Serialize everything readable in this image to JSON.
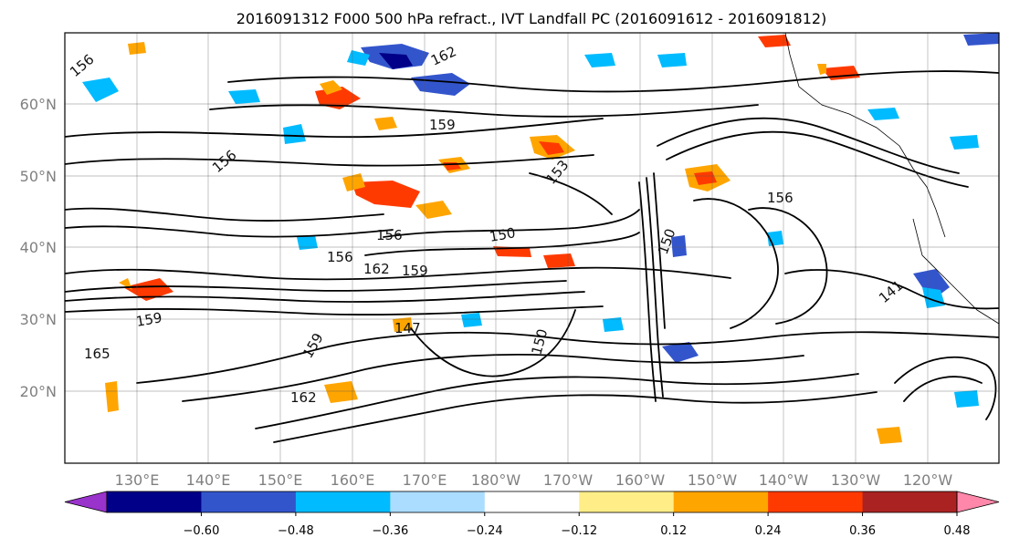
{
  "figure": {
    "title": "2016091312 F000 500 hPa refract., IVT Landfall PC (2016091612 - 2016091812)"
  },
  "map": {
    "lon_labels": [
      "130°E",
      "140°E",
      "150°E",
      "160°E",
      "170°E",
      "180°W",
      "170°W",
      "160°W",
      "150°W",
      "140°W",
      "130°W",
      "120°W"
    ],
    "lat_labels": [
      "60°N",
      "50°N",
      "40°N",
      "30°N",
      "20°N"
    ],
    "contour_labels": [
      "156",
      "162",
      "159",
      "156",
      "153",
      "156",
      "150",
      "156",
      "162",
      "159",
      "165",
      "159",
      "147",
      "150",
      "159",
      "162",
      "156",
      "141",
      "150"
    ]
  },
  "colorbar": {
    "ticks": [
      "−0.60",
      "−0.48",
      "−0.36",
      "−0.24",
      "−0.12",
      "0.12",
      "0.24",
      "0.36",
      "0.48",
      "0.60"
    ],
    "colors": [
      "#9933cc",
      "#000088",
      "#3355cc",
      "#00bbff",
      "#aaddff",
      "#ffffff",
      "#ffee88",
      "#ffa500",
      "#ff3a00",
      "#aa2222",
      "#ff88aa"
    ]
  }
}
